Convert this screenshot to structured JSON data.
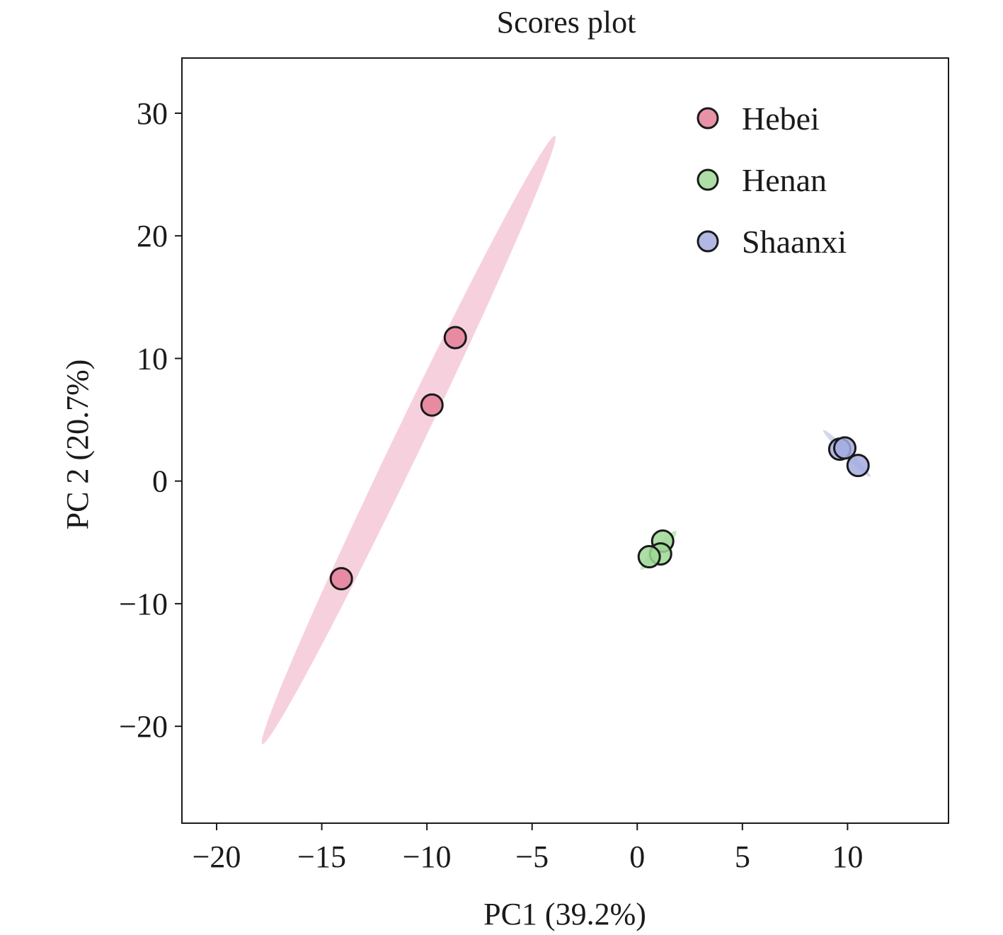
{
  "chart_data": {
    "type": "scatter",
    "title": "Scores plot",
    "xlabel": "PC1 (39.2%)",
    "ylabel": "PC 2 (20.7%)",
    "xlim": [
      -21.65,
      14.8
    ],
    "ylim": [
      -27.9,
      34.5
    ],
    "xticks": [
      -20,
      -15,
      -10,
      -5,
      0,
      5,
      10
    ],
    "xtick_labels": [
      "−20",
      "−15",
      "−10",
      "−5",
      "0",
      "5",
      "10"
    ],
    "yticks": [
      -20,
      -10,
      0,
      10,
      20,
      30
    ],
    "ytick_labels": [
      "−20",
      "−10",
      "0",
      "10",
      "20",
      "30"
    ],
    "grid": false,
    "legend_position": "top-right",
    "series": [
      {
        "name": "Hebei",
        "color": "#e37f98",
        "ellipse_color": "#f4c6d4",
        "points": [
          [
            -8.65,
            11.7
          ],
          [
            -9.76,
            6.2
          ],
          [
            -14.07,
            -7.96
          ]
        ],
        "ellipse": {
          "center": [
            -10.87,
            3.35
          ],
          "major_half": [
            6.96,
            24.8
          ],
          "minor_half_px_scale": 20
        }
      },
      {
        "name": "Henan",
        "color": "#9fd896",
        "ellipse_color": "#b7e3ae",
        "points": [
          [
            1.21,
            -4.9
          ],
          [
            1.11,
            -5.94
          ],
          [
            0.57,
            -6.17
          ]
        ],
        "ellipse": {
          "center": [
            1.01,
            -5.65
          ],
          "major_half": [
            0.84,
            1.56
          ],
          "minor_half_px_scale": 7
        }
      },
      {
        "name": "Shaanxi",
        "color": "#a4abdf",
        "ellipse_color": "#c8cdec",
        "points": [
          [
            9.63,
            2.6
          ],
          [
            9.87,
            2.7
          ],
          [
            10.5,
            1.27
          ]
        ],
        "ellipse": {
          "center": [
            9.97,
            2.25
          ],
          "major_half": [
            1.12,
            -1.9
          ],
          "minor_half_px_scale": 5
        }
      }
    ]
  }
}
